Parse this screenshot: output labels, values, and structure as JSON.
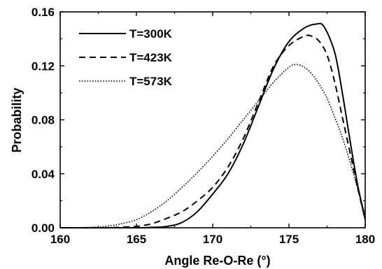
{
  "chart_data": {
    "type": "line",
    "xlabel": "Angle Re-O-Re (°)",
    "ylabel": "Probability",
    "xlim": [
      160,
      180
    ],
    "ylim": [
      0,
      0.16
    ],
    "x_ticks": [
      "160",
      "165",
      "170",
      "175",
      "180"
    ],
    "y_ticks": [
      "0.00",
      "0.04",
      "0.08",
      "0.12",
      "0.16"
    ],
    "grid": false,
    "legend_position": "top-left",
    "series": [
      {
        "name": "T=300K",
        "line_style": "solid",
        "color": "#000000",
        "points": [
          [
            160,
            0
          ],
          [
            165,
            0
          ],
          [
            166,
            0.0003
          ],
          [
            167,
            0.001
          ],
          [
            168,
            0.004
          ],
          [
            169,
            0.012
          ],
          [
            170,
            0.025
          ],
          [
            171,
            0.04
          ],
          [
            172,
            0.062
          ],
          [
            173,
            0.09
          ],
          [
            174,
            0.118
          ],
          [
            175,
            0.138
          ],
          [
            176,
            0.148
          ],
          [
            176.8,
            0.151
          ],
          [
            177.3,
            0.149
          ],
          [
            178,
            0.13
          ],
          [
            178.5,
            0.1
          ],
          [
            179,
            0.065
          ],
          [
            179.5,
            0.032
          ],
          [
            180,
            0.006
          ]
        ]
      },
      {
        "name": "T=423K",
        "line_style": "dashed",
        "color": "#000000",
        "points": [
          [
            160,
            0
          ],
          [
            163,
            0
          ],
          [
            164,
            0.0005
          ],
          [
            165,
            0.001
          ],
          [
            166,
            0.003
          ],
          [
            167,
            0.007
          ],
          [
            168,
            0.012
          ],
          [
            169,
            0.02
          ],
          [
            170,
            0.03
          ],
          [
            171,
            0.045
          ],
          [
            172,
            0.066
          ],
          [
            173,
            0.093
          ],
          [
            174,
            0.12
          ],
          [
            175,
            0.135
          ],
          [
            176,
            0.142
          ],
          [
            176.5,
            0.142
          ],
          [
            177,
            0.138
          ],
          [
            177.5,
            0.128
          ],
          [
            178,
            0.108
          ],
          [
            178.5,
            0.082
          ],
          [
            179,
            0.056
          ],
          [
            179.5,
            0.03
          ],
          [
            180,
            0.006
          ]
        ]
      },
      {
        "name": "T=573K",
        "line_style": "dotted",
        "color": "#000000",
        "points": [
          [
            160,
            0
          ],
          [
            162,
            0.0003
          ],
          [
            163,
            0.001
          ],
          [
            164,
            0.003
          ],
          [
            165,
            0.006
          ],
          [
            166,
            0.012
          ],
          [
            167,
            0.02
          ],
          [
            168,
            0.03
          ],
          [
            169,
            0.041
          ],
          [
            170,
            0.053
          ],
          [
            171,
            0.066
          ],
          [
            172,
            0.08
          ],
          [
            173,
            0.094
          ],
          [
            174,
            0.108
          ],
          [
            175,
            0.119
          ],
          [
            175.5,
            0.121
          ],
          [
            176,
            0.119
          ],
          [
            176.5,
            0.114
          ],
          [
            177,
            0.106
          ],
          [
            177.5,
            0.096
          ],
          [
            178,
            0.082
          ],
          [
            178.5,
            0.067
          ],
          [
            179,
            0.049
          ],
          [
            179.5,
            0.029
          ],
          [
            180,
            0.01
          ]
        ]
      }
    ]
  }
}
